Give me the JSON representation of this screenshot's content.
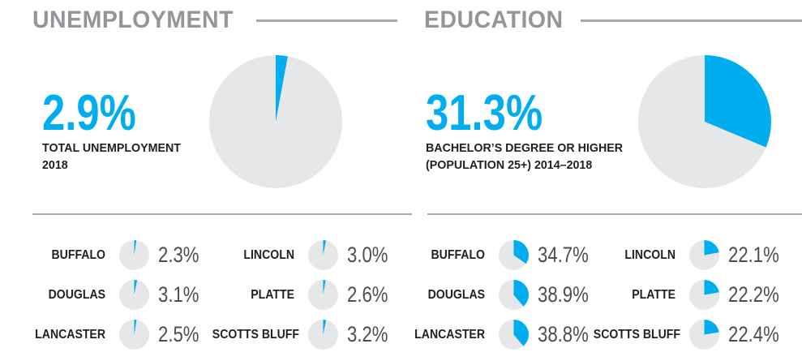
{
  "colors": {
    "accent": "#00aeef",
    "pie_bg": "#e6e7e8",
    "header_gray": "#939598",
    "rule_gray": "#a7a9ac",
    "label_black": "#231f20",
    "value_gray": "#4d4d4f"
  },
  "sections": [
    {
      "title": "UNEMPLOYMENT",
      "stat": "2.9%",
      "stat_value": 2.9,
      "subtitle1": "TOTAL UNEMPLOYMENT",
      "subtitle2": "2018",
      "counties": [
        {
          "name": "BUFFALO",
          "value": "2.3%",
          "pct": 2.3
        },
        {
          "name": "DOUGLAS",
          "value": "3.1%",
          "pct": 3.1
        },
        {
          "name": "LANCASTER",
          "value": "2.5%",
          "pct": 2.5
        },
        {
          "name": "LINCOLN",
          "value": "3.0%",
          "pct": 3.0
        },
        {
          "name": "PLATTE",
          "value": "2.6%",
          "pct": 2.6
        },
        {
          "name": "SCOTTS BLUFF",
          "value": "3.2%",
          "pct": 3.2
        }
      ]
    },
    {
      "title": "EDUCATION",
      "stat": "31.3%",
      "stat_value": 31.3,
      "subtitle1": "BACHELOR’S DEGREE OR HIGHER",
      "subtitle2": "(POPULATION 25+) 2014–2018",
      "counties": [
        {
          "name": "BUFFALO",
          "value": "34.7%",
          "pct": 34.7
        },
        {
          "name": "DOUGLAS",
          "value": "38.9%",
          "pct": 38.9
        },
        {
          "name": "LANCASTER",
          "value": "38.8%",
          "pct": 38.8
        },
        {
          "name": "LINCOLN",
          "value": "22.1%",
          "pct": 22.1
        },
        {
          "name": "PLATTE",
          "value": "22.2%",
          "pct": 22.2
        },
        {
          "name": "SCOTTS BLUFF",
          "value": "22.4%",
          "pct": 22.4
        }
      ]
    }
  ],
  "chart_data": [
    {
      "type": "pie",
      "title": "UNEMPLOYMENT — TOTAL UNEMPLOYMENT 2018",
      "labels": [
        "Unemployed",
        "Remainder"
      ],
      "values": [
        2.9,
        97.1
      ],
      "colors": [
        "#00aeef",
        "#e6e7e8"
      ],
      "start_angle": "12 o'clock, clockwise"
    },
    {
      "type": "pie",
      "title": "EDUCATION — BACHELOR’S DEGREE OR HIGHER (POPULATION 25+) 2014–2018",
      "labels": [
        "Bachelor’s degree or higher",
        "Remainder"
      ],
      "values": [
        31.3,
        68.7
      ],
      "colors": [
        "#00aeef",
        "#e6e7e8"
      ],
      "start_angle": "12 o'clock, clockwise"
    },
    {
      "type": "pie",
      "title": "County unemployment rates 2018 (mini pies)",
      "categories": [
        "BUFFALO",
        "DOUGLAS",
        "LANCASTER",
        "LINCOLN",
        "PLATTE",
        "SCOTTS BLUFF"
      ],
      "values": [
        2.3,
        3.1,
        2.5,
        3.0,
        2.6,
        3.2
      ]
    },
    {
      "type": "pie",
      "title": "County bachelor’s degree or higher, population 25+, 2014–2018 (mini pies)",
      "categories": [
        "BUFFALO",
        "DOUGLAS",
        "LANCASTER",
        "LINCOLN",
        "PLATTE",
        "SCOTTS BLUFF"
      ],
      "values": [
        34.7,
        38.9,
        38.8,
        22.1,
        22.2,
        22.4
      ]
    }
  ]
}
